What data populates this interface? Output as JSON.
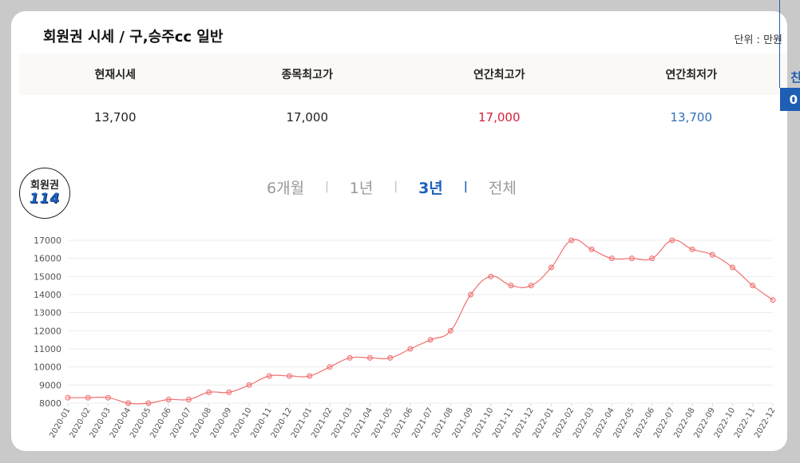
{
  "header": {
    "title": "회원권 시세 / 구,승주cc 일반",
    "unit": "단위 : 만원"
  },
  "summary": {
    "headers": [
      "현재시세",
      "종목최고가",
      "연간최고가",
      "연간최저가"
    ],
    "values": [
      "13,700",
      "17,000",
      "17,000",
      "13,700"
    ]
  },
  "logo": {
    "top": "회원권",
    "num": "114"
  },
  "periods": [
    "6개월",
    "1년",
    "3년",
    "전체"
  ],
  "active_period": "3년",
  "side_tab": {
    "top": "친",
    "bottom": "0"
  },
  "colors": {
    "line": "#f07070",
    "accent": "#1e5fbf",
    "high": "#d1213b",
    "low": "#2e6fbb"
  },
  "chart_data": {
    "type": "line",
    "x": [
      "2020-01",
      "2020-02",
      "2020-03",
      "2020-04",
      "2020-05",
      "2020-06",
      "2020-07",
      "2020-08",
      "2020-09",
      "2020-10",
      "2020-11",
      "2020-12",
      "2021-01",
      "2021-02",
      "2021-03",
      "2021-04",
      "2021-05",
      "2021-06",
      "2021-07",
      "2021-08",
      "2021-09",
      "2021-10",
      "2021-11",
      "2021-12",
      "2022-01",
      "2022-02",
      "2022-03",
      "2022-04",
      "2022-05",
      "2022-06",
      "2022-07",
      "2022-08",
      "2022-09",
      "2022-10",
      "2022-11",
      "2022-12"
    ],
    "series": [
      {
        "values": [
          8300,
          8300,
          8300,
          8000,
          8000,
          8200,
          8200,
          8600,
          8600,
          9000,
          9500,
          9500,
          9500,
          10000,
          10500,
          10500,
          10500,
          11000,
          11500,
          12000,
          14000,
          15000,
          14500,
          14500,
          15500,
          17000,
          16500,
          16000,
          16000,
          16000,
          17000,
          16500,
          16200,
          15500,
          14500,
          13700
        ]
      }
    ],
    "yticks": [
      8000,
      9000,
      10000,
      11000,
      12000,
      13000,
      14000,
      15000,
      16000,
      17000
    ],
    "ylim": [
      8000,
      17000
    ],
    "grid": true,
    "title": "",
    "xlabel": "",
    "ylabel": ""
  }
}
